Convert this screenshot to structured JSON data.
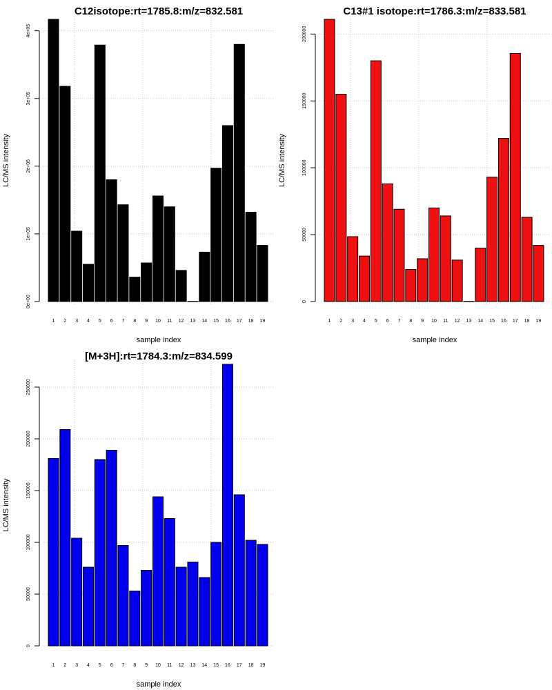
{
  "chart_data": [
    {
      "type": "bar",
      "title": "C12isotope:rt=1785.8:m/z=832.581",
      "xlabel": "sample index",
      "ylabel": "LC/MS intensity",
      "categories": [
        "1",
        "2",
        "3",
        "4",
        "5",
        "6",
        "7",
        "8",
        "9",
        "10",
        "11",
        "12",
        "13",
        "14",
        "15",
        "16",
        "17",
        "18",
        "19"
      ],
      "values": [
        417000,
        318000,
        104000,
        55000,
        379000,
        180000,
        143000,
        36000,
        57000,
        156000,
        140000,
        46000,
        0,
        73000,
        197000,
        260000,
        380000,
        132000,
        83000
      ],
      "yticks": [
        0,
        100000,
        200000,
        300000,
        400000
      ],
      "ytick_labels": [
        "0e+00",
        "1e+05",
        "2e+05",
        "3e+05",
        "4e+05"
      ],
      "ylim": [
        0,
        417000
      ],
      "color": "#000000",
      "grid": true
    },
    {
      "type": "bar",
      "title": "C13#1 isotope:rt=1786.3:m/z=833.581",
      "xlabel": "sample index",
      "ylabel": "LC/MS intensity",
      "categories": [
        "1",
        "2",
        "3",
        "4",
        "5",
        "6",
        "7",
        "8",
        "9",
        "10",
        "11",
        "12",
        "13",
        "14",
        "15",
        "16",
        "17",
        "18",
        "19"
      ],
      "values": [
        211000,
        155000,
        48500,
        34000,
        180000,
        88000,
        69000,
        24000,
        32000,
        70000,
        64000,
        31000,
        0,
        40000,
        93000,
        122000,
        185500,
        63000,
        42000
      ],
      "yticks": [
        0,
        50000,
        100000,
        150000,
        200000
      ],
      "ytick_labels": [
        "0",
        "50000",
        "100000",
        "150000",
        "200000"
      ],
      "ylim": [
        0,
        211000
      ],
      "color": "#ee1111",
      "grid": true
    },
    {
      "type": "bar",
      "title": "[M+3H]:rt=1784.3:m/z=834.599",
      "xlabel": "sample index",
      "ylabel": "LC/MS intensity",
      "categories": [
        "1",
        "2",
        "3",
        "4",
        "5",
        "6",
        "7",
        "8",
        "9",
        "10",
        "11",
        "12",
        "13",
        "14",
        "15",
        "16",
        "17",
        "18",
        "19"
      ],
      "values": [
        181000,
        209000,
        104000,
        76000,
        180000,
        189000,
        97000,
        53000,
        73000,
        144000,
        123000,
        76000,
        81000,
        66000,
        100000,
        272000,
        146000,
        102000,
        98000
      ],
      "yticks": [
        0,
        50000,
        100000,
        150000,
        200000,
        250000
      ],
      "ytick_labels": [
        "0",
        "50000",
        "100000",
        "150000",
        "200000",
        "250000"
      ],
      "ylim": [
        0,
        272000
      ],
      "color": "#0000ee",
      "grid": true
    }
  ]
}
